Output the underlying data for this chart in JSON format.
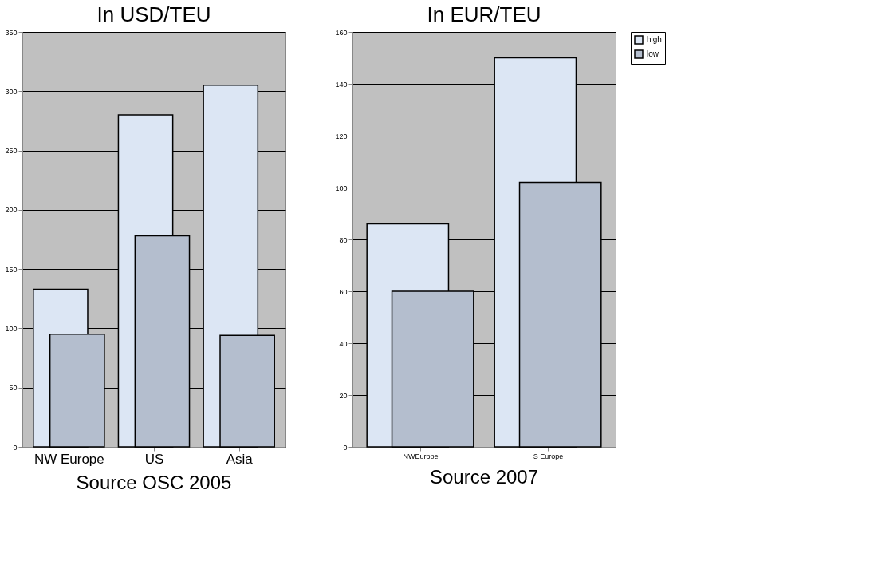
{
  "chart_data": [
    {
      "type": "bar",
      "title": "In USD/TEU",
      "categories": [
        "NW Europe",
        "US",
        "Asia"
      ],
      "series": [
        {
          "name": "high",
          "color": "#dce6f4",
          "values": [
            133,
            280,
            305
          ]
        },
        {
          "name": "low",
          "color": "#b4bece",
          "values": [
            95,
            178,
            94
          ]
        }
      ],
      "ylim": [
        0,
        350
      ],
      "yticks": [
        0,
        50,
        100,
        150,
        200,
        250,
        300,
        350
      ],
      "grid": "y",
      "legend": "right",
      "annotations": [
        "Source OSC 2005"
      ]
    },
    {
      "type": "bar",
      "title": "In EUR/TEU",
      "categories": [
        "NWEurope",
        "S Europe"
      ],
      "series": [
        {
          "name": "high",
          "color": "#dce6f4",
          "values": [
            86,
            150
          ]
        },
        {
          "name": "low",
          "color": "#b4bece",
          "values": [
            60,
            102
          ]
        }
      ],
      "ylim": [
        0,
        160
      ],
      "yticks": [
        0,
        20,
        40,
        60,
        80,
        100,
        120,
        140,
        160
      ],
      "grid": "y",
      "legend": "right",
      "annotations": [
        "Source 2007"
      ]
    }
  ]
}
